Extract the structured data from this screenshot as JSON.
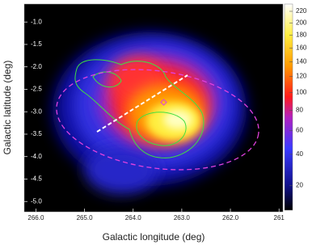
{
  "chart_data": {
    "type": "image",
    "xlabel": "Galactic longitude (deg)",
    "ylabel": "Galactic latitude (deg)",
    "xlim": [
      266.24,
      260.92
    ],
    "xticks": [
      {
        "value": 266,
        "label": "266.0"
      },
      {
        "value": 265,
        "label": "265.0"
      },
      {
        "value": 264,
        "label": "264.0"
      },
      {
        "value": 263,
        "label": "263.0"
      },
      {
        "value": 262,
        "label": "262.0"
      },
      261
    ],
    "ylim": [
      -5.23,
      -0.6
    ],
    "yticks": [
      {
        "value": -1,
        "label": "-1.0"
      },
      {
        "value": -1.5,
        "label": "-1.5"
      },
      {
        "value": -2,
        "label": "-2.0"
      },
      {
        "value": -2.5,
        "label": "-2.5"
      },
      {
        "value": -3,
        "label": "-3.0"
      },
      {
        "value": -3.5,
        "label": "-3.5"
      },
      {
        "value": -4,
        "label": "-4.0"
      },
      {
        "value": -4.5,
        "label": "-4.5"
      },
      {
        "value": -5,
        "label": "-5.0"
      }
    ],
    "colorbar": {
      "scale": "sqrt",
      "lim": [
        9,
        233
      ],
      "ticks": [
        20,
        40,
        60,
        80,
        100,
        120,
        140,
        160,
        180,
        200,
        220
      ]
    }
  }
}
